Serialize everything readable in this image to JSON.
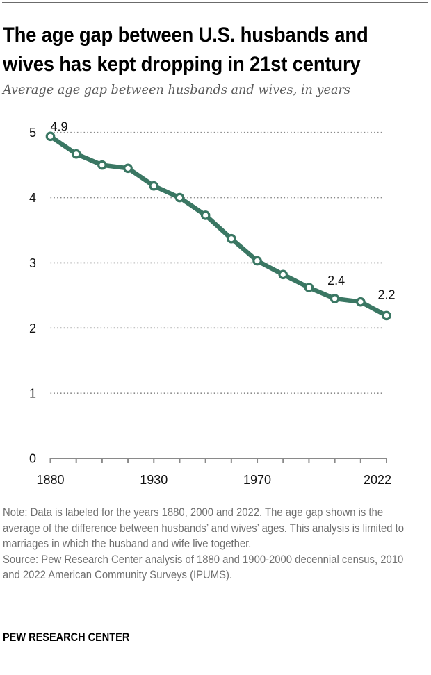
{
  "header": {
    "title_line1": "The age gap between U.S. husbands and",
    "title_line2": "wives has kept dropping in 21st century",
    "subtitle": "Average age gap between husbands and wives, in years"
  },
  "chart_data": {
    "type": "line",
    "title": "The age gap between U.S. husbands and wives has kept dropping in 21st century",
    "subtitle": "Average age gap between husbands and wives, in years",
    "xlabel": "",
    "ylabel": "",
    "x": [
      1880,
      1900,
      1910,
      1920,
      1930,
      1940,
      1950,
      1960,
      1970,
      1980,
      1990,
      2000,
      2010,
      2022
    ],
    "series": [
      {
        "name": "Average age gap (years)",
        "color": "#3a7763",
        "values": [
          4.94,
          4.67,
          4.5,
          4.45,
          4.18,
          4.0,
          3.73,
          3.37,
          3.03,
          2.82,
          2.62,
          2.45,
          2.4,
          2.19
        ]
      }
    ],
    "data_labels": [
      {
        "x": 1880,
        "text": "4.9"
      },
      {
        "x": 2000,
        "text": "2.4"
      },
      {
        "x": 2022,
        "text": "2.2"
      }
    ],
    "ylim": [
      0,
      5
    ],
    "yticks": [
      0,
      1,
      2,
      3,
      4,
      5
    ],
    "ytick_labels": [
      "0",
      "1",
      "2",
      "3",
      "4",
      "5"
    ],
    "xtick_labels": [
      {
        "x": 1880,
        "text": "1880"
      },
      {
        "x": 1930,
        "text": "1930"
      },
      {
        "x": 1970,
        "text": "1970"
      },
      {
        "x": 2022,
        "text": "2022"
      }
    ],
    "grid": "horizontal dotted",
    "legend": "none"
  },
  "footer": {
    "note": "Note: Data is labeled for the years 1880, 2000 and 2022. The age gap shown is the average of the difference between husbands’ and wives’ ages. This analysis is limited to marriages in which the husband and wife live together.",
    "source": "Source: Pew Research Center analysis of 1880 and 1900-2000 decennial census, 2010 and 2022 American Community Surveys (IPUMS).",
    "brand": "PEW RESEARCH CENTER"
  }
}
